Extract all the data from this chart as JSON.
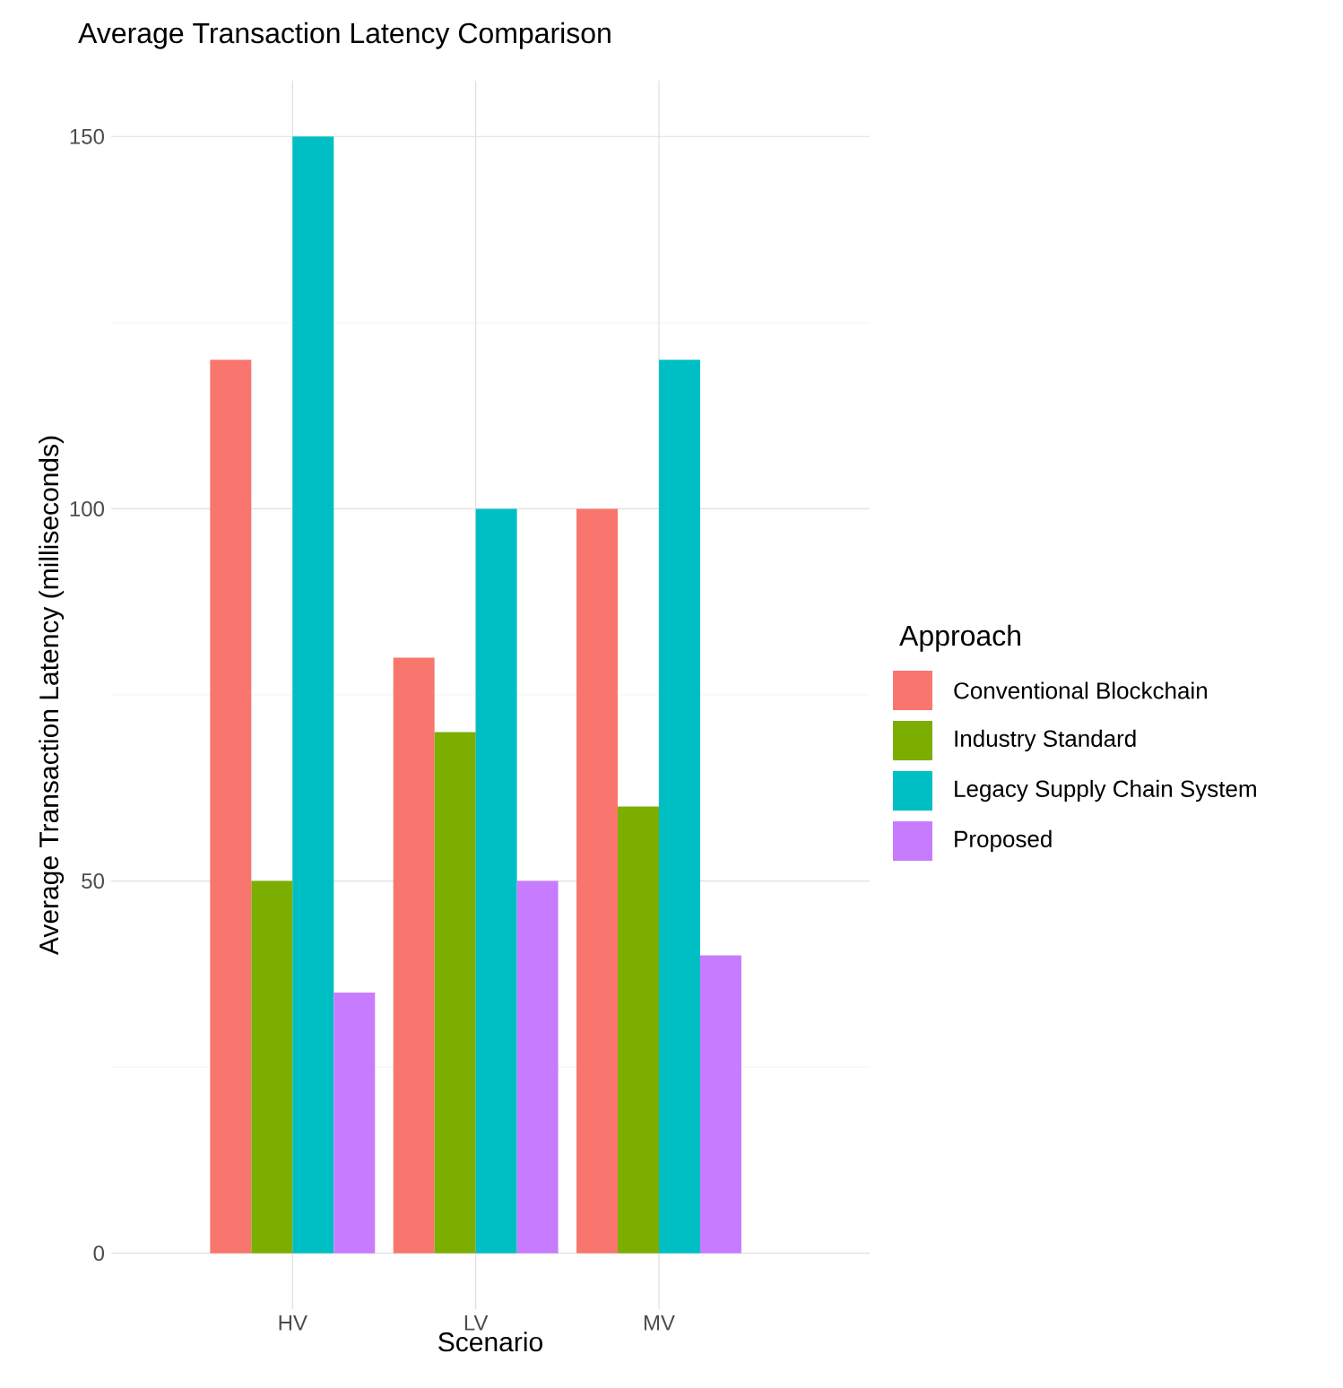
{
  "chart_data": {
    "type": "bar",
    "title": "Average Transaction Latency Comparison",
    "xlabel": "Scenario",
    "ylabel": "Average Transaction Latency (milliseconds)",
    "legend_title": "Approach",
    "categories": [
      "HV",
      "LV",
      "MV"
    ],
    "series": [
      {
        "name": "Conventional Blockchain",
        "color": "#f8766d",
        "values": [
          120,
          80,
          100
        ]
      },
      {
        "name": "Industry Standard",
        "color": "#7cae00",
        "values": [
          50,
          70,
          60
        ]
      },
      {
        "name": "Legacy Supply Chain System",
        "color": "#00bfc4",
        "values": [
          150,
          100,
          120
        ]
      },
      {
        "name": "Proposed",
        "color": "#c77cff",
        "values": [
          35,
          50,
          40
        ]
      }
    ],
    "ylim": [
      -7.5,
      157.5
    ],
    "yticks": [
      0,
      50,
      100,
      150
    ],
    "grid": true,
    "legend": "right"
  }
}
